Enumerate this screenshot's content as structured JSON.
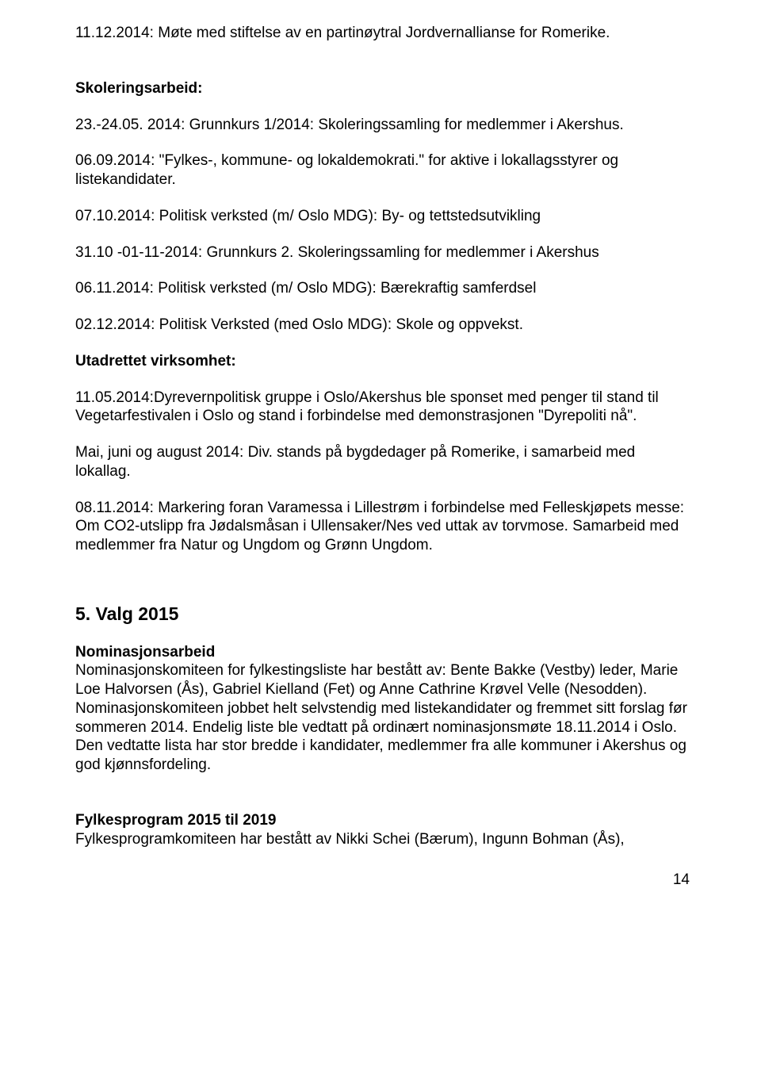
{
  "p1": "11.12.2014: Møte med stiftelse av en partinøytral Jordvernallianse for Romerike.",
  "h_skolering": "Skoleringsarbeid:",
  "p2": "23.-24.05. 2014: Grunnkurs 1/2014: Skoleringssamling for medlemmer i Akershus.",
  "p3": "06.09.2014: \"Fylkes-, kommune- og lokaldemokrati.\" for aktive i lokallagsstyrer og listekandidater.",
  "p4": "07.10.2014: Politisk verksted (m/ Oslo MDG): By- og tettstedsutvikling",
  "p5": "31.10 -01-11-2014: Grunnkurs 2. Skoleringssamling for medlemmer i Akershus",
  "p6": "06.11.2014: Politisk verksted (m/ Oslo MDG): Bærekraftig samferdsel",
  "p7": "02.12.2014: Politisk Verksted (med Oslo MDG):  Skole og oppvekst.",
  "h_utadrettet": "Utadrettet virksomhet:",
  "p8": "11.05.2014:Dyrevernpolitisk gruppe i Oslo/Akershus ble sponset med penger til stand til Vegetarfestivalen i Oslo og stand i forbindelse med demonstrasjonen \"Dyrepoliti nå\".",
  "p9": "Mai, juni og august 2014: Div. stands på bygdedager på Romerike, i samarbeid med lokallag.",
  "p10": "08.11.2014: Markering foran Varamessa i Lillestrøm i forbindelse med Felleskjøpets messe: Om CO2-utslipp fra Jødalsmåsan i Ullensaker/Nes ved uttak av torvmose. Samarbeid med medlemmer fra Natur og Ungdom og Grønn Ungdom.",
  "h_valg": "5. Valg 2015",
  "h_nom": "Nominasjonsarbeid",
  "p11": "Nominasjonskomiteen for fylkestingsliste har bestått av: Bente Bakke (Vestby) leder, Marie Loe Halvorsen (Ås), Gabriel Kielland (Fet) og Anne Cathrine Krøvel Velle (Nesodden). Nominasjonskomiteen jobbet helt selvstendig med listekandidater og fremmet sitt forslag før sommeren 2014. Endelig liste ble vedtatt på ordinært nominasjonsmøte 18.11.2014 i Oslo. Den vedtatte lista har stor bredde i kandidater, medlemmer fra alle kommuner i Akershus og god kjønnsfordeling.",
  "h_fylke": "Fylkesprogram 2015 til 2019",
  "p12": "Fylkesprogramkomiteen har bestått av Nikki Schei (Bærum), Ingunn Bohman (Ås),",
  "page_number": "14"
}
